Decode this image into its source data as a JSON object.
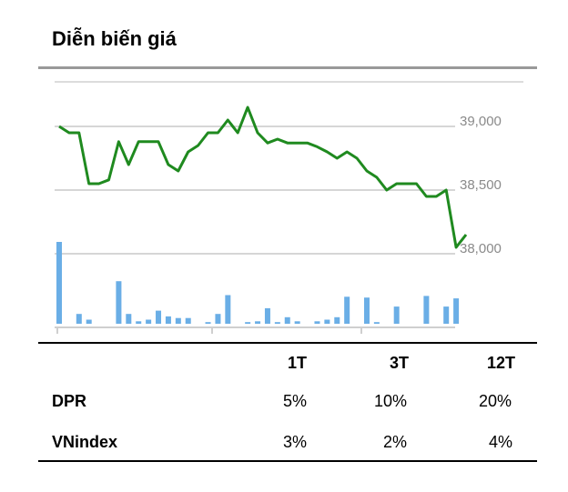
{
  "title": "Diễn biến giá",
  "chart_data": {
    "type": "line",
    "y_ticks": [
      "39,000",
      "38,500",
      "38,000"
    ],
    "y_tick_values": [
      39000,
      38500,
      38000
    ],
    "price": [
      39000,
      38950,
      38950,
      38550,
      38550,
      38580,
      38880,
      38700,
      38880,
      38880,
      38880,
      38700,
      38650,
      38800,
      38850,
      38950,
      38950,
      39050,
      38950,
      39150,
      38950,
      38870,
      38900,
      38870,
      38870,
      38870,
      38840,
      38800,
      38750,
      38800,
      38750,
      38650,
      38600,
      38500,
      38550,
      38550,
      38550,
      38450,
      38450,
      38500,
      38050,
      38150
    ],
    "volume": [
      1.0,
      0,
      0.12,
      0.05,
      0,
      0,
      0.52,
      0.12,
      0.03,
      0.05,
      0.16,
      0.09,
      0.07,
      0.07,
      0,
      0.02,
      0.12,
      0.35,
      0,
      0.02,
      0.03,
      0.19,
      0.02,
      0.08,
      0.03,
      0,
      0.03,
      0.05,
      0.08,
      0.33,
      0,
      0.32,
      0.02,
      0,
      0.21,
      0,
      0,
      0.34,
      0,
      0.21,
      0.31,
      0
    ],
    "y_range": [
      37850,
      39350
    ],
    "grid": "horizontal",
    "line_color": "#1f8a1f",
    "volume_color": "#6aaee6"
  },
  "performance": {
    "headers": [
      "",
      "1T",
      "3T",
      "12T"
    ],
    "rows": [
      {
        "label": "DPR",
        "values": [
          "5%",
          "10%",
          "20%"
        ]
      },
      {
        "label": "VNindex",
        "values": [
          "3%",
          "2%",
          "4%"
        ]
      }
    ]
  }
}
